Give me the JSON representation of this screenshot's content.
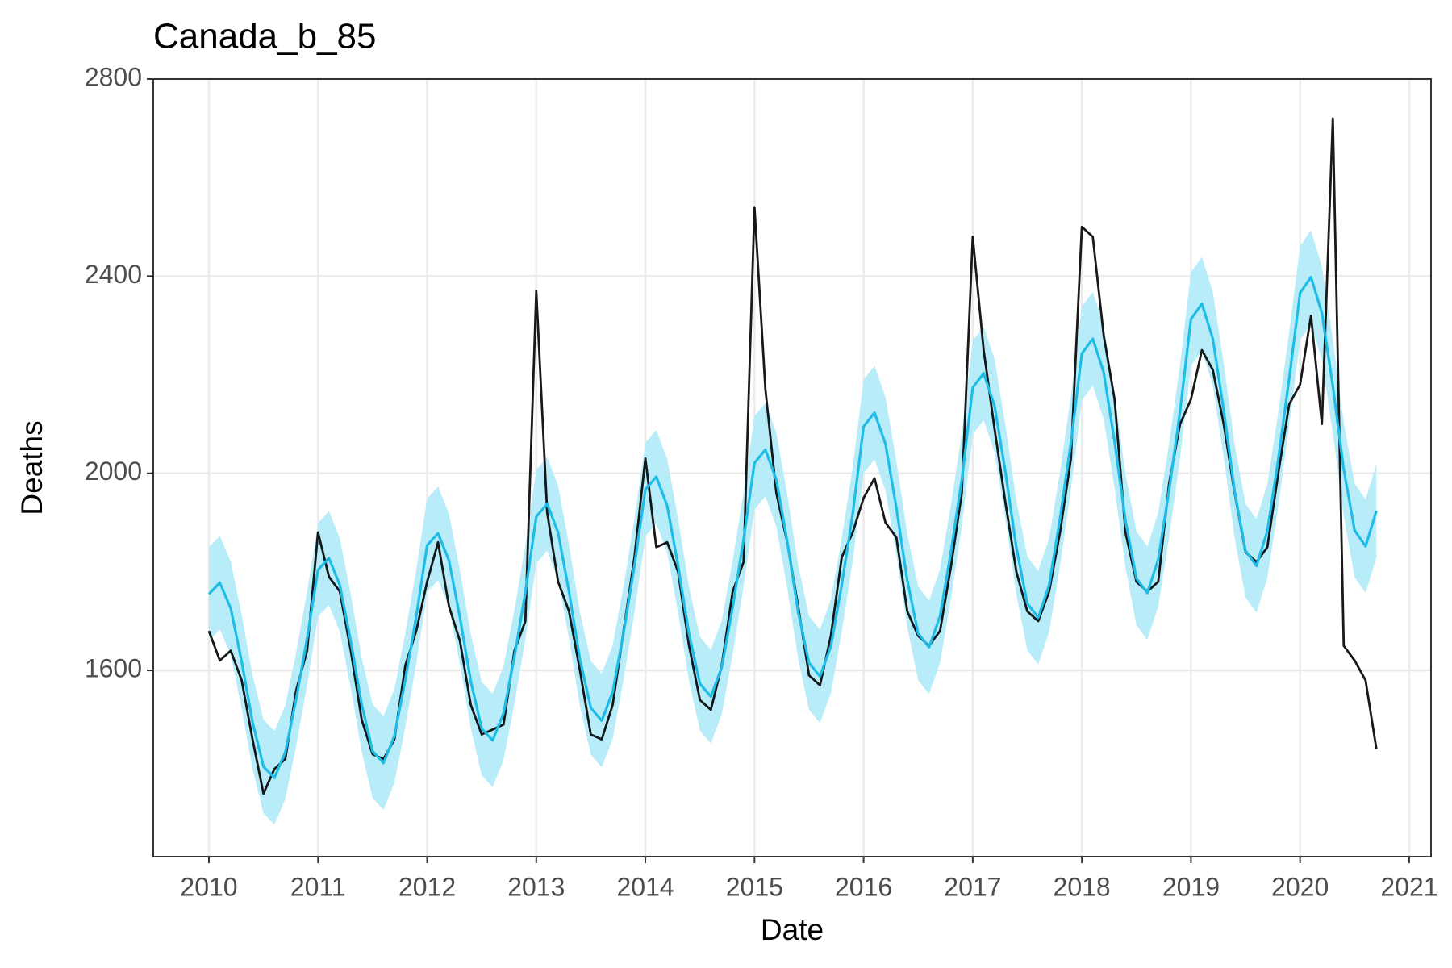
{
  "chart_data": {
    "type": "line",
    "title": "Canada_b_85",
    "x_label": "Date",
    "y_label": "Deaths",
    "x": [
      2010,
      2010.1,
      2010.2,
      2010.3,
      2010.4,
      2010.5,
      2010.6,
      2010.7,
      2010.8,
      2010.9,
      2011,
      2011.1,
      2011.2,
      2011.3,
      2011.4,
      2011.5,
      2011.6,
      2011.7,
      2011.8,
      2011.9,
      2012,
      2012.1,
      2012.2,
      2012.3,
      2012.4,
      2012.5,
      2012.6,
      2012.7,
      2012.8,
      2012.9,
      2013,
      2013.1,
      2013.2,
      2013.3,
      2013.4,
      2013.5,
      2013.6,
      2013.7,
      2013.8,
      2013.9,
      2014,
      2014.1,
      2014.2,
      2014.3,
      2014.4,
      2014.5,
      2014.6,
      2014.7,
      2014.8,
      2014.9,
      2015,
      2015.1,
      2015.2,
      2015.3,
      2015.4,
      2015.5,
      2015.6,
      2015.7,
      2015.8,
      2015.9,
      2016,
      2016.1,
      2016.2,
      2016.3,
      2016.4,
      2016.5,
      2016.6,
      2016.7,
      2016.8,
      2016.9,
      2017,
      2017.1,
      2017.2,
      2017.3,
      2017.4,
      2017.5,
      2017.6,
      2017.7,
      2017.8,
      2017.9,
      2018,
      2018.1,
      2018.2,
      2018.3,
      2018.4,
      2018.5,
      2018.6,
      2018.7,
      2018.8,
      2018.9,
      2019,
      2019.1,
      2019.2,
      2019.3,
      2019.4,
      2019.5,
      2019.6,
      2019.7,
      2019.8,
      2019.9,
      2020,
      2020.1,
      2020.2,
      2020.3,
      2020.4,
      2020.5,
      2020.6,
      2020.7
    ],
    "band": {
      "color": "#b8ecf8",
      "lower": [
        1660,
        1683,
        1631,
        1523,
        1400,
        1310,
        1287,
        1339,
        1447,
        1570,
        1709,
        1733,
        1678,
        1564,
        1436,
        1341,
        1317,
        1372,
        1486,
        1614,
        1759,
        1783,
        1728,
        1613,
        1483,
        1387,
        1363,
        1418,
        1533,
        1663,
        1817,
        1843,
        1785,
        1665,
        1528,
        1429,
        1403,
        1461,
        1581,
        1718,
        1872,
        1898,
        1839,
        1717,
        1579,
        1478,
        1452,
        1511,
        1633,
        1771,
        1926,
        1953,
        1892,
        1767,
        1624,
        1520,
        1493,
        1554,
        1679,
        1822,
        2000,
        2028,
        1965,
        1835,
        1688,
        1580,
        1552,
        1615,
        1745,
        1892,
        2079,
        2108,
        2042,
        1907,
        1754,
        1641,
        1612,
        1678,
        1813,
        1967,
        2148,
        2178,
        2110,
        1969,
        1809,
        1692,
        1662,
        1730,
        1871,
        2031,
        2218,
        2249,
        2178,
        2033,
        1869,
        1748,
        1717,
        1788,
        1933,
        2097,
        2271,
        2303,
        2230,
        2082,
        1913,
        1789,
        1757,
        1829
      ],
      "upper": [
        1850,
        1873,
        1821,
        1713,
        1590,
        1500,
        1477,
        1529,
        1637,
        1760,
        1899,
        1923,
        1868,
        1754,
        1626,
        1531,
        1507,
        1562,
        1676,
        1804,
        1949,
        1973,
        1918,
        1803,
        1673,
        1577,
        1553,
        1608,
        1723,
        1853,
        2007,
        2033,
        1975,
        1855,
        1718,
        1619,
        1593,
        1651,
        1771,
        1908,
        2062,
        2088,
        2029,
        1907,
        1769,
        1668,
        1642,
        1701,
        1823,
        1961,
        2116,
        2143,
        2082,
        1957,
        1814,
        1710,
        1683,
        1744,
        1869,
        2012,
        2190,
        2218,
        2155,
        2025,
        1878,
        1770,
        1742,
        1805,
        1935,
        2082,
        2269,
        2298,
        2232,
        2097,
        1944,
        1831,
        1802,
        1868,
        2003,
        2157,
        2338,
        2368,
        2300,
        2159,
        1999,
        1882,
        1852,
        1920,
        2061,
        2221,
        2408,
        2439,
        2368,
        2223,
        2059,
        1938,
        1907,
        1978,
        2123,
        2287,
        2461,
        2493,
        2420,
        2272,
        2103,
        1979,
        1947,
        2019
      ]
    },
    "series": [
      {
        "color": "#000000",
        "values": [
          1680,
          1620,
          1640,
          1580,
          1460,
          1350,
          1400,
          1420,
          1560,
          1640,
          1880,
          1790,
          1760,
          1640,
          1500,
          1430,
          1420,
          1460,
          1610,
          1680,
          1780,
          1860,
          1730,
          1660,
          1530,
          1470,
          1480,
          1490,
          1640,
          1700,
          2370,
          1920,
          1780,
          1720,
          1600,
          1470,
          1460,
          1530,
          1680,
          1830,
          2030,
          1850,
          1860,
          1800,
          1650,
          1540,
          1520,
          1610,
          1760,
          1820,
          2540,
          2170,
          1960,
          1860,
          1730,
          1590,
          1570,
          1670,
          1830,
          1880,
          1950,
          1990,
          1900,
          1870,
          1720,
          1670,
          1650,
          1680,
          1810,
          1960,
          2480,
          2250,
          2090,
          1940,
          1800,
          1720,
          1700,
          1760,
          1880,
          2030,
          2500,
          2480,
          2280,
          2150,
          1880,
          1780,
          1760,
          1780,
          1980,
          2100,
          2150,
          2250,
          2210,
          2100,
          1960,
          1840,
          1820,
          1850,
          2000,
          2140,
          2180,
          2320,
          2100,
          2720,
          1650,
          1620,
          1580,
          1440
        ]
      },
      {
        "color": "#1ebde8",
        "values": [
          1755,
          1778,
          1726,
          1618,
          1495,
          1405,
          1382,
          1434,
          1542,
          1665,
          1804,
          1828,
          1773,
          1659,
          1531,
          1436,
          1412,
          1467,
          1581,
          1709,
          1854,
          1878,
          1823,
          1708,
          1578,
          1482,
          1458,
          1513,
          1628,
          1758,
          1912,
          1938,
          1880,
          1760,
          1623,
          1524,
          1498,
          1556,
          1676,
          1813,
          1967,
          1993,
          1934,
          1812,
          1674,
          1573,
          1547,
          1606,
          1728,
          1866,
          2021,
          2048,
          1987,
          1862,
          1719,
          1615,
          1588,
          1649,
          1774,
          1917,
          2095,
          2123,
          2060,
          1930,
          1783,
          1675,
          1647,
          1710,
          1840,
          1987,
          2174,
          2203,
          2137,
          2002,
          1849,
          1736,
          1707,
          1773,
          1908,
          2062,
          2243,
          2273,
          2205,
          2064,
          1904,
          1787,
          1757,
          1825,
          1966,
          2126,
          2313,
          2344,
          2273,
          2128,
          1964,
          1843,
          1812,
          1883,
          2028,
          2192,
          2366,
          2398,
          2325,
          2177,
          2008,
          1884,
          1852,
          1924
        ]
      }
    ],
    "xlim": [
      2009.49,
      2021.2
    ],
    "xticks": [
      2010,
      2011,
      2012,
      2013,
      2014,
      2015,
      2016,
      2017,
      2018,
      2019,
      2020,
      2021
    ],
    "ylim": [
      1222,
      2800
    ],
    "yticks": [
      1600,
      2000,
      2400,
      2800
    ],
    "grid": true
  }
}
